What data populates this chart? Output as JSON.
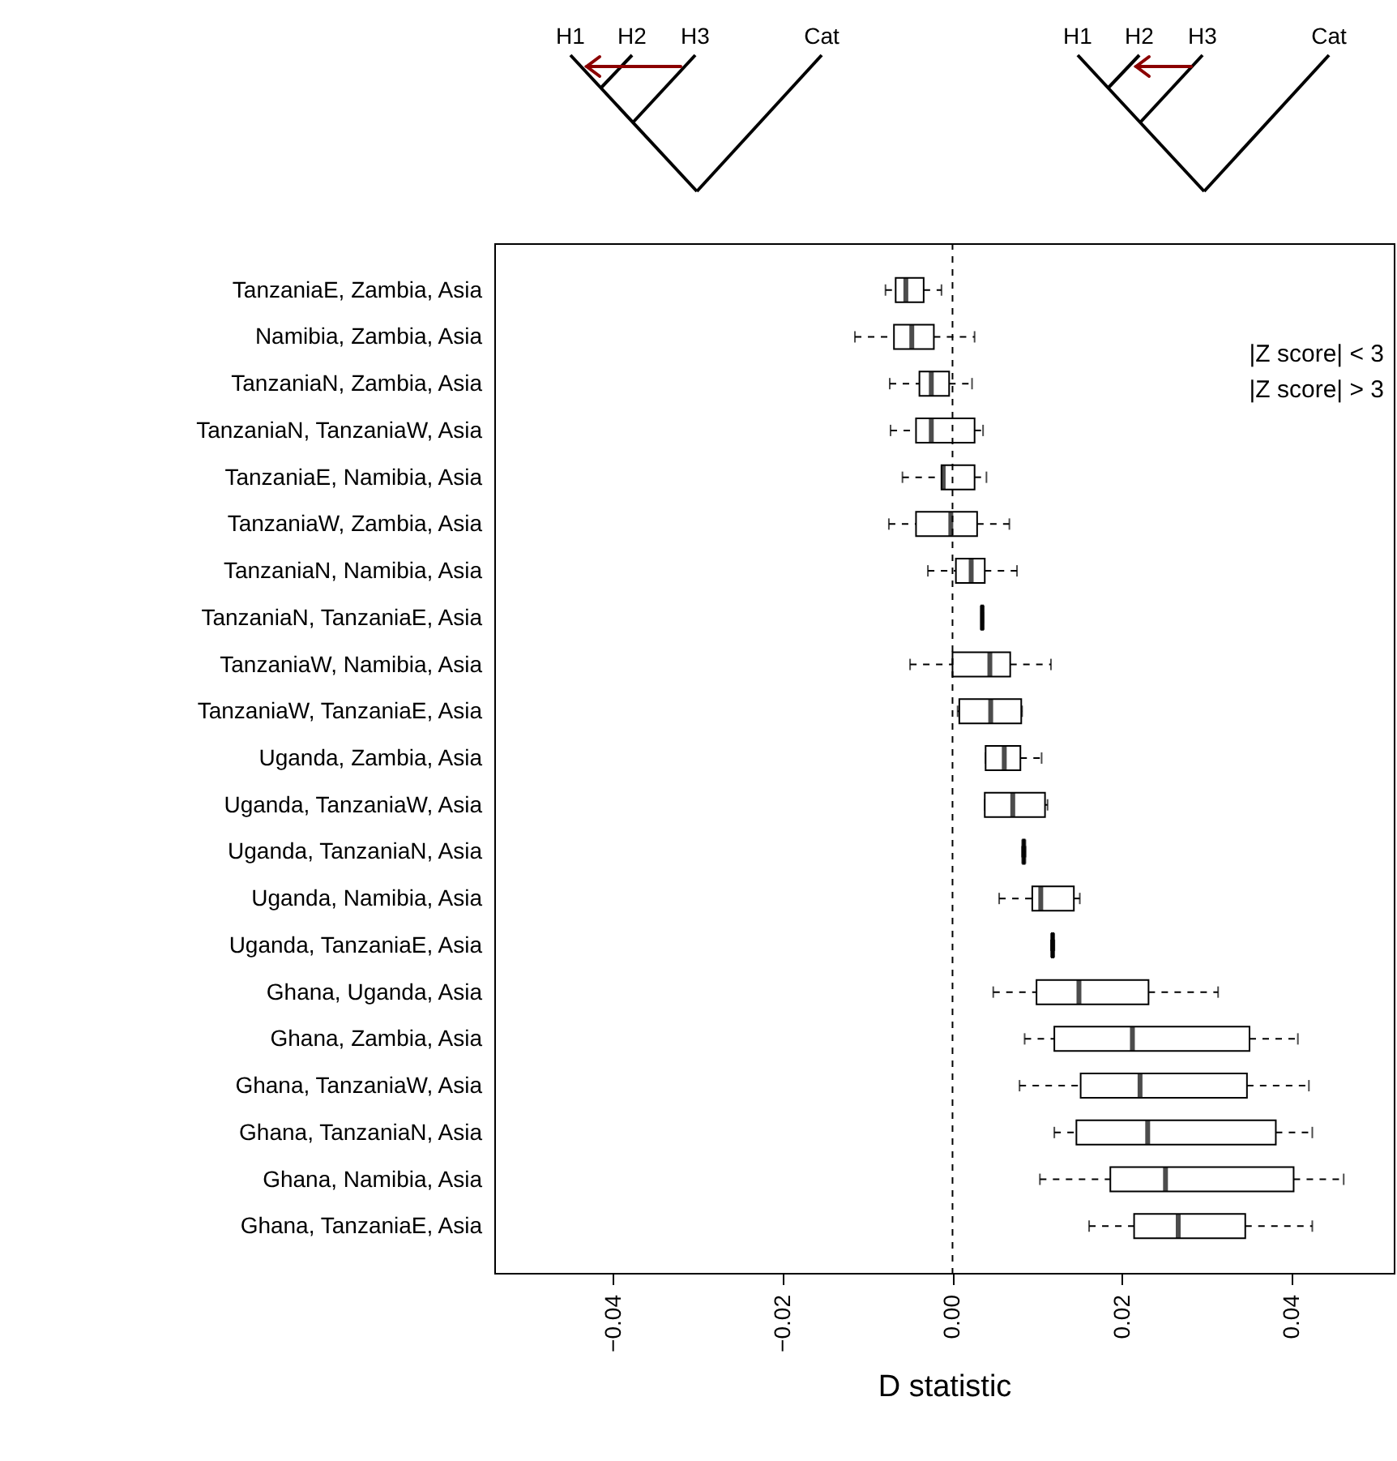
{
  "chart_data": {
    "type": "box",
    "orientation": "horizontal",
    "xlabel": "D statistic",
    "categories": [
      "TanzaniaE, Zambia, Asia",
      "Namibia, Zambia, Asia",
      "TanzaniaN, Zambia, Asia",
      "TanzaniaN, TanzaniaW, Asia",
      "TanzaniaE, Namibia, Asia",
      "TanzaniaW, Zambia, Asia",
      "TanzaniaN, Namibia, Asia",
      "TanzaniaN, TanzaniaE, Asia",
      "TanzaniaW, Namibia, Asia",
      "TanzaniaW, TanzaniaE, Asia",
      "Uganda, Zambia, Asia",
      "Uganda, TanzaniaW, Asia",
      "Uganda, TanzaniaN, Asia",
      "Uganda, Namibia, Asia",
      "Uganda, TanzaniaE, Asia",
      "Ghana, Uganda, Asia",
      "Ghana, Zambia, Asia",
      "Ghana, TanzaniaW, Asia",
      "Ghana, TanzaniaN, Asia",
      "Ghana, Namibia, Asia",
      "Ghana, TanzaniaE, Asia"
    ],
    "boxes": [
      {
        "low": -0.0079,
        "q1": -0.0067,
        "median": -0.0055,
        "q3": -0.0034,
        "high": -0.0013
      },
      {
        "low": -0.0115,
        "q1": -0.0069,
        "median": -0.0048,
        "q3": -0.0022,
        "high": 0.0026
      },
      {
        "low": -0.0074,
        "q1": -0.0039,
        "median": -0.0025,
        "q3": -0.0004,
        "high": 0.0023
      },
      {
        "low": -0.0073,
        "q1": -0.0043,
        "median": -0.0025,
        "q3": 0.0026,
        "high": 0.0036
      },
      {
        "low": -0.0059,
        "q1": -0.0013,
        "median": -0.0011,
        "q3": 0.0026,
        "high": 0.004
      },
      {
        "low": -0.0075,
        "q1": -0.0043,
        "median": -0.0002,
        "q3": 0.0029,
        "high": 0.0067
      },
      {
        "low": -0.0029,
        "q1": 0.0004,
        "median": 0.0022,
        "q3": 0.0038,
        "high": 0.0076
      },
      {
        "low": 0.0034,
        "q1": 0.0034,
        "median": 0.0035,
        "q3": 0.0036,
        "high": 0.0036
      },
      {
        "low": -0.005,
        "q1": 0.0,
        "median": 0.0044,
        "q3": 0.0068,
        "high": 0.0116
      },
      {
        "low": 0.0006,
        "q1": 0.0008,
        "median": 0.0045,
        "q3": 0.0081,
        "high": 0.0082
      },
      {
        "low": 0.0039,
        "q1": 0.0039,
        "median": 0.0061,
        "q3": 0.008,
        "high": 0.0105
      },
      {
        "low": 0.0038,
        "q1": 0.0038,
        "median": 0.0071,
        "q3": 0.0109,
        "high": 0.0112
      },
      {
        "low": 0.0082,
        "q1": 0.0083,
        "median": 0.0084,
        "q3": 0.0085,
        "high": 0.0086
      },
      {
        "low": 0.0055,
        "q1": 0.0094,
        "median": 0.0104,
        "q3": 0.0143,
        "high": 0.015
      },
      {
        "low": 0.0116,
        "q1": 0.0117,
        "median": 0.0118,
        "q3": 0.0119,
        "high": 0.012
      },
      {
        "low": 0.0048,
        "q1": 0.0099,
        "median": 0.0149,
        "q3": 0.0231,
        "high": 0.0313
      },
      {
        "low": 0.0085,
        "q1": 0.012,
        "median": 0.0212,
        "q3": 0.035,
        "high": 0.0407
      },
      {
        "low": 0.0079,
        "q1": 0.0151,
        "median": 0.0221,
        "q3": 0.0347,
        "high": 0.042
      },
      {
        "low": 0.012,
        "q1": 0.0146,
        "median": 0.023,
        "q3": 0.0381,
        "high": 0.0424
      },
      {
        "low": 0.0103,
        "q1": 0.0186,
        "median": 0.0251,
        "q3": 0.0402,
        "high": 0.0461
      },
      {
        "low": 0.0161,
        "q1": 0.0214,
        "median": 0.0266,
        "q3": 0.0345,
        "high": 0.0424
      }
    ],
    "xlim": [
      -0.054,
      0.052
    ],
    "xticks": [
      {
        "value": -0.04,
        "label": "−0.04"
      },
      {
        "value": -0.02,
        "label": "−0.02"
      },
      {
        "value": 0,
        "label": "0.00"
      },
      {
        "value": 0.02,
        "label": "0.02"
      },
      {
        "value": 0.04,
        "label": "0.04"
      }
    ],
    "ref_lines": [
      {
        "axis": "x",
        "value": 0,
        "line_style": "dashed"
      }
    ],
    "annotations": [
      "H1",
      "H2",
      "H3",
      "Cat",
      "H1",
      "H2",
      "H3",
      "Cat",
      "|Z score| < 3",
      "|Z score| > 3"
    ]
  }
}
